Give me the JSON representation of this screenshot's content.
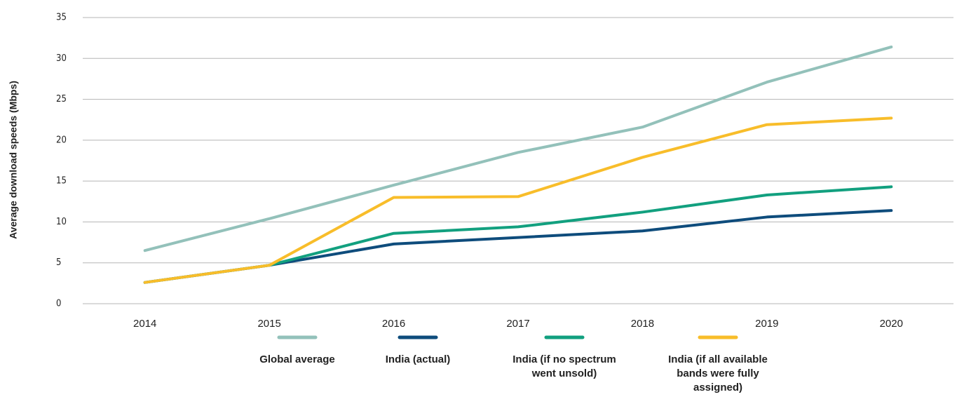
{
  "chart_data": {
    "type": "line",
    "y_label": "Average  download speeds (Mbps)",
    "categories": [
      "2014",
      "2015",
      "2016",
      "2017",
      "2018",
      "2019",
      "2020"
    ],
    "series": [
      {
        "name": "Global average",
        "color": "#93c1ba",
        "values": [
          6.5,
          10.4,
          14.5,
          18.5,
          21.6,
          27.1,
          31.4
        ]
      },
      {
        "name": "India (actual)",
        "color": "#0e4c7c",
        "values": [
          2.6,
          4.7,
          7.3,
          8.1,
          8.9,
          10.6,
          11.4
        ]
      },
      {
        "name": "India (if no spectrum went unsold)",
        "color": "#12a07f",
        "values": [
          2.6,
          4.7,
          8.6,
          9.4,
          11.2,
          13.3,
          14.3
        ]
      },
      {
        "name": "India (if all available bands were fully assigned)",
        "color": "#f8bd2a",
        "values": [
          2.6,
          4.7,
          13.0,
          13.1,
          17.9,
          21.9,
          22.7
        ]
      }
    ],
    "ylim": [
      0,
      35
    ],
    "yticks": [
      0,
      5,
      10,
      15,
      20,
      25,
      30,
      35
    ],
    "grid": true
  }
}
